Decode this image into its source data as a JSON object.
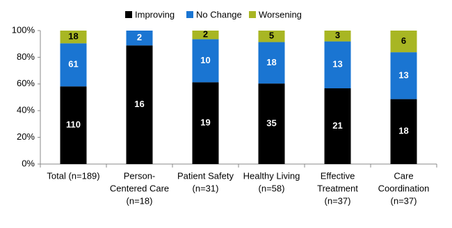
{
  "chart_data": {
    "type": "bar",
    "stacking": "percent",
    "categories": [
      [
        "Total (n=189)"
      ],
      [
        "Person-",
        "Centered Care",
        "(n=18)"
      ],
      [
        "Patient Safety",
        "(n=31)"
      ],
      [
        "Healthy Living",
        "(n=58)"
      ],
      [
        "Effective",
        "Treatment",
        "(n=37)"
      ],
      [
        "Care",
        "Coordination",
        "(n=37)"
      ]
    ],
    "series": [
      {
        "name": "Improving",
        "color": "#000000",
        "label_color": "#ffffff",
        "values": [
          110,
          16,
          19,
          35,
          21,
          18
        ]
      },
      {
        "name": "No Change",
        "color": "#1a75d2",
        "label_color": "#ffffff",
        "values": [
          61,
          2,
          10,
          18,
          13,
          13
        ]
      },
      {
        "name": "Worsening",
        "color": "#a8b623",
        "label_color": "#000000",
        "values": [
          18,
          null,
          2,
          5,
          3,
          6
        ]
      }
    ],
    "ylim": [
      0,
      100
    ],
    "yticks": [
      {
        "value": 0,
        "label": "0%"
      },
      {
        "value": 20,
        "label": "20%"
      },
      {
        "value": 40,
        "label": "40%"
      },
      {
        "value": 60,
        "label": "60%"
      },
      {
        "value": 80,
        "label": "80%"
      },
      {
        "value": 100,
        "label": "100%"
      }
    ],
    "grid": false,
    "legend": "top"
  }
}
